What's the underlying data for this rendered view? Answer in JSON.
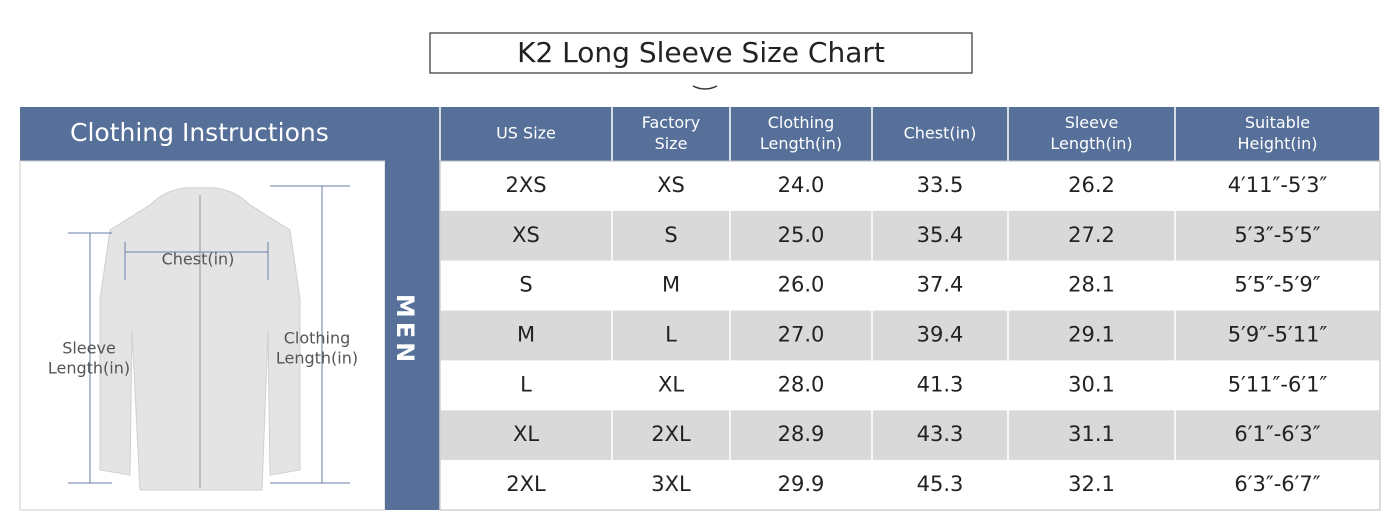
{
  "title": "K2 Long Sleeve Size Chart",
  "panel": {
    "heading": "Clothing Instructions",
    "group": "MEN",
    "labels": {
      "chest": [
        "Chest(in)"
      ],
      "sleeve": [
        "Sleeve",
        "Length(in)"
      ],
      "length": [
        "Clothing",
        "Length(in)"
      ]
    }
  },
  "table": {
    "headers": [
      [
        "US Size"
      ],
      [
        "Factory",
        "Size"
      ],
      [
        "Clothing",
        "Length(in)"
      ],
      [
        "Chest(in)"
      ],
      [
        "Sleeve",
        "Length(in)"
      ],
      [
        "Suitable",
        "Height(in)"
      ]
    ],
    "rows": [
      [
        "2XS",
        "XS",
        "24.0",
        "33.5",
        "26.2",
        "4′11″-5′3″"
      ],
      [
        "XS",
        "S",
        "25.0",
        "35.4",
        "27.2",
        "5′3″-5′5″"
      ],
      [
        "S",
        "M",
        "26.0",
        "37.4",
        "28.1",
        "5′5″-5′9″"
      ],
      [
        "M",
        "L",
        "27.0",
        "39.4",
        "29.1",
        "5′9″-5′11″"
      ],
      [
        "L",
        "XL",
        "28.0",
        "41.3",
        "30.1",
        "5′11″-6′1″"
      ],
      [
        "XL",
        "2XL",
        "28.9",
        "43.3",
        "31.1",
        "6′1″-6′3″"
      ],
      [
        "2XL",
        "3XL",
        "29.9",
        "45.3",
        "32.1",
        "6′3″-6′7″"
      ]
    ]
  }
}
